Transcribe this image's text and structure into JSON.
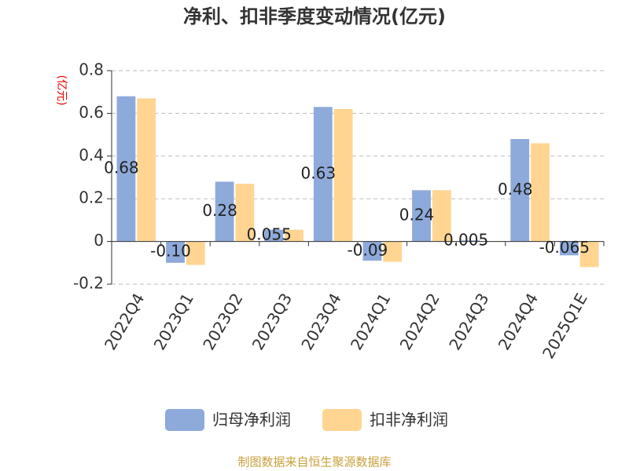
{
  "chart_data": {
    "type": "bar",
    "title": "净利、扣非季度变动情况(亿元)",
    "y_unit": "(亿元)",
    "source": "制图数据来自恒生聚源数据库",
    "categories": [
      "2022Q4",
      "2023Q1",
      "2023Q2",
      "2023Q3",
      "2023Q4",
      "2024Q1",
      "2024Q2",
      "2024Q3",
      "2024Q4",
      "2025Q1E"
    ],
    "series": [
      {
        "name": "归母净利润",
        "color": "#8eaadb",
        "values": [
          0.68,
          -0.1,
          0.28,
          0.055,
          0.63,
          -0.09,
          0.24,
          0.005,
          0.48,
          -0.065
        ],
        "value_labels": [
          "0.68",
          "-0.10",
          "0.28",
          "0.055",
          "0.63",
          "-0.09",
          "0.24",
          "0.005",
          "0.48",
          "-0.065"
        ]
      },
      {
        "name": "扣非净利润",
        "color": "#ffd591",
        "values": [
          0.67,
          -0.11,
          0.27,
          0.055,
          0.62,
          -0.095,
          0.24,
          0.002,
          0.46,
          -0.12
        ]
      }
    ],
    "ylim": [
      -0.2,
      0.8
    ],
    "yticks": [
      -0.2,
      0,
      0.2,
      0.4,
      0.6,
      0.8
    ],
    "grid": true
  }
}
